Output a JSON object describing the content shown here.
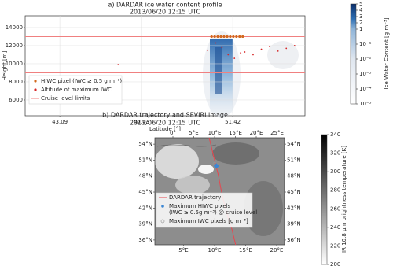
{
  "chart_data": [
    {
      "type": "profile",
      "title": "a) DARDAR ice water content profile",
      "subtitle": "2013/06/20 12:15 UTC",
      "xlabel": "Latitude [°]",
      "ylabel": "Height [m]",
      "xlim": [
        41.42,
        54.9
      ],
      "ylim": [
        4260,
        15300
      ],
      "xticks": [
        43.09,
        47.03,
        51.42
      ],
      "yticks": [
        6000,
        8000,
        10000,
        12000,
        14000
      ],
      "grid": true,
      "cruise_levels": {
        "name": "Cruise level limits",
        "color": "#f08080",
        "values": [
          9000,
          13000
        ]
      },
      "hiwc": {
        "name": "HIWC pixel (IWC ≥ 0.5 g m⁻³)",
        "color": "#d2691e",
        "x": [
          50.4,
          50.55,
          50.7,
          50.85,
          51.0,
          51.15,
          51.3,
          51.45,
          51.6,
          51.75,
          51.9
        ],
        "y": [
          13000,
          13000,
          13000,
          13000,
          13000,
          13000,
          13000,
          13000,
          13000,
          13000,
          13000
        ]
      },
      "max_iwc": {
        "name": "Altitude of maximum IWC",
        "color": "#d62728",
        "x": [
          45.9,
          50.2,
          50.6,
          50.9,
          51.2,
          51.5,
          51.8,
          52.0,
          52.4,
          52.8,
          53.2,
          53.6,
          54.0,
          54.4
        ],
        "y": [
          9900,
          11500,
          12300,
          11800,
          11000,
          10600,
          11200,
          11300,
          11000,
          11600,
          11900,
          11400,
          11700,
          12000
        ]
      },
      "colorbar": {
        "label": "Ice Water Content [g m⁻³]",
        "clim": [
          1e-05,
          5
        ],
        "ticks": [
          5,
          4,
          3,
          2,
          1,
          {
            "value": 0.1,
            "label": "10⁻¹"
          },
          {
            "value": 0.01,
            "label": "10⁻²"
          },
          {
            "value": 0.001,
            "label": "10⁻³"
          },
          {
            "value": 0.0001,
            "label": "10⁻⁴"
          },
          {
            "value": 1e-05,
            "label": "10⁻⁵"
          }
        ]
      }
    },
    {
      "type": "map",
      "title": "b) DARDAR trajectory and SEVIRI image",
      "subtitle": "2013/06/20 12:15 UTC",
      "latlim": [
        35.1,
        55.2
      ],
      "lonlim_south": [
        0.38,
        21.27
      ],
      "lonlim_north": [
        -4.34,
        26.79
      ],
      "lonticks_top": [
        {
          "value": 0,
          "label": "0°"
        },
        {
          "value": 5,
          "label": "5°E"
        },
        {
          "value": 10,
          "label": "10°E"
        },
        {
          "value": 15,
          "label": "15°E"
        },
        {
          "value": 20,
          "label": "20°E"
        },
        {
          "value": 25,
          "label": "25°E"
        }
      ],
      "lonticks_bottom": [
        {
          "value": 5,
          "label": "5°E"
        },
        {
          "value": 10,
          "label": "10°E"
        },
        {
          "value": 15,
          "label": "15°E"
        },
        {
          "value": 20,
          "label": "20°E"
        }
      ],
      "latticks": [
        {
          "value": 54,
          "label": "54°N"
        },
        {
          "value": 51,
          "label": "51°N"
        },
        {
          "value": 48,
          "label": "48°N"
        },
        {
          "value": 45,
          "label": "45°N"
        },
        {
          "value": 42,
          "label": "42°N"
        },
        {
          "value": 39,
          "label": "39°N"
        },
        {
          "value": 36,
          "label": "36°N"
        }
      ],
      "trajectory": {
        "name": "DARDAR trajectory",
        "color": "#e8474f",
        "lat": [
          35.1,
          38,
          40,
          42.3,
          44,
          46,
          48.2,
          50,
          52,
          54,
          55.2
        ],
        "lon": [
          13.4,
          13.0,
          12.5,
          12.0,
          11.6,
          11.2,
          10.8,
          10.3,
          9.7,
          9.1,
          8.7
        ]
      },
      "hiwc_pixels": {
        "name": "Maximum HIWC pixels\n(IWC ≥ 0.5g m⁻³) @ cruise level",
        "color": "#3a86d4",
        "lat": [
          49.9
        ],
        "lon": [
          10.4
        ]
      },
      "max_iwc_pixels": {
        "name": "Maximum IWC pixels [g m⁻³]",
        "color": "#999999",
        "lat": [
          50.3
        ],
        "lon": [
          10.0
        ]
      },
      "colorbar": {
        "label": "IR 10.8 μm brightness temperature [K]",
        "clim": [
          200,
          340
        ],
        "ticks": [
          200,
          220,
          240,
          260,
          280,
          300,
          320,
          340
        ]
      }
    }
  ]
}
